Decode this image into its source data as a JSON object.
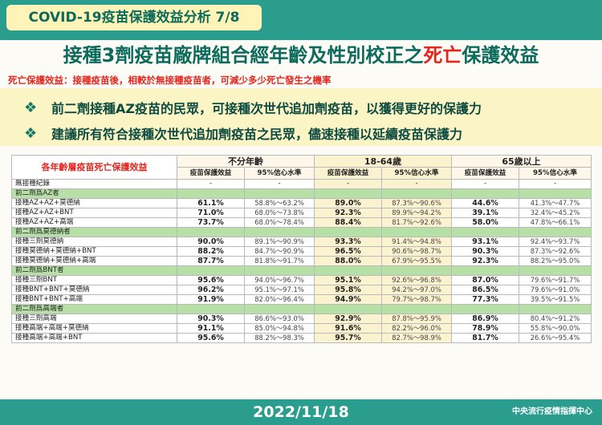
{
  "header": {
    "badge": "COVID-19疫苗保護效益分析 7/8",
    "title_pre": "接種3劑疫苗廠牌組合經年齡及性別校正之",
    "title_highlight": "死亡",
    "title_post": "保護效益",
    "subtitle": "死亡保護效益：接種疫苗後，相較於無接種疫苗者，可減少多少死亡發生之機率"
  },
  "bullets": [
    {
      "icon": "diamond-bullet-icon",
      "glyph": "❖",
      "text": "前二劑接種AZ疫苗的民眾，可接種次世代追加劑疫苗，以獲得更好的保護力"
    },
    {
      "icon": "diamond-bullet-icon",
      "glyph": "❖",
      "text": "建議所有符合接種次世代追加劑疫苗之民眾，儘速接種以延續疫苗保護力"
    }
  ],
  "table": {
    "row_label_header": "各年齡層疫苗死亡保護效益",
    "age_groups": [
      "不分年齡",
      "18-64歲",
      "65歲以上"
    ],
    "sub_headers": {
      "ve": "疫苗保護效益",
      "ci": "95%信心水準"
    },
    "no_vaccine": {
      "label": "無接種紀錄",
      "dash": "-"
    },
    "groups": [
      {
        "name": "前二劑爲AZ者",
        "rows": [
          {
            "label": "接種AZ+AZ+莫德納",
            "v": [
              "61.1%",
              "89.0%",
              "44.6%"
            ],
            "ci": [
              "58.8%～63.2%",
              "87.3%～90.6%",
              "41.3%～47.7%"
            ]
          },
          {
            "label": "接種AZ+AZ+BNT",
            "v": [
              "71.0%",
              "92.3%",
              "39.1%"
            ],
            "ci": [
              "68.0%～73.8%",
              "89.9%～94.2%",
              "32.4%～45.2%"
            ]
          },
          {
            "label": "接種AZ+AZ+高端",
            "v": [
              "73.7%",
              "88.4%",
              "58.0%"
            ],
            "ci": [
              "68.0%～78.4%",
              "81.7%～92.6%",
              "47.8%～66.1%"
            ]
          }
        ]
      },
      {
        "name": "前二劑爲莫德納者",
        "rows": [
          {
            "label": "接種三劑莫德納",
            "v": [
              "90.0%",
              "93.3%",
              "93.1%"
            ],
            "ci": [
              "89.1%～90.9%",
              "91.4%～94.8%",
              "92.4%～93.7%"
            ]
          },
          {
            "label": "接種莫德納+莫德納+BNT",
            "v": [
              "88.2%",
              "96.5%",
              "90.3%"
            ],
            "ci": [
              "84.7%～90.9%",
              "90.6%～98.7%",
              "87.3%～92.6%"
            ]
          },
          {
            "label": "接種莫德納+莫德納+高端",
            "v": [
              "87.7%",
              "88.0%",
              "92.3%"
            ],
            "ci": [
              "81.8%～91.7%",
              "67.9%～95.5%",
              "88.2%～95.0%"
            ]
          }
        ]
      },
      {
        "name": "前二劑爲BNT者",
        "rows": [
          {
            "label": "接種三劑BNT",
            "v": [
              "95.6%",
              "95.1%",
              "87.0%"
            ],
            "ci": [
              "94.0%～96.7%",
              "92.6%～96.8%",
              "79.6%～91.7%"
            ]
          },
          {
            "label": "接種BNT+BNT+莫德納",
            "v": [
              "96.2%",
              "95.8%",
              "86.5%"
            ],
            "ci": [
              "95.1%～97.1%",
              "94.2%～97.0%",
              "79.6%～91.0%"
            ]
          },
          {
            "label": "接種BNT+BNT+高端",
            "v": [
              "91.9%",
              "94.9%",
              "77.3%"
            ],
            "ci": [
              "82.0%～96.4%",
              "79.7%～98.7%",
              "39.5%～91.5%"
            ]
          }
        ]
      },
      {
        "name": "前二劑爲高端者",
        "rows": [
          {
            "label": "接種三劑高端",
            "v": [
              "90.3%",
              "92.9%",
              "86.9%"
            ],
            "ci": [
              "86.6%～93.0%",
              "87.8%～95.9%",
              "80.4%～91.2%"
            ]
          },
          {
            "label": "接種高端+高端+莫德納",
            "v": [
              "91.1%",
              "91.6%",
              "78.9%"
            ],
            "ci": [
              "85.0%～94.8%",
              "82.2%～96.0%",
              "55.8%～90.0%"
            ]
          },
          {
            "label": "接種高端+高端+BNT",
            "v": [
              "95.6%",
              "95.7%",
              "81.7%"
            ],
            "ci": [
              "88.2%～98.3%",
              "82.7%～98.9%",
              "26.6%～95.4%"
            ]
          }
        ]
      }
    ]
  },
  "footer": {
    "date": "2022/11/18",
    "org": "中央流行疫情指揮中心"
  },
  "colors": {
    "teal_band": "#2a9d8f",
    "title_green": "#0d6b5c",
    "highlight_red": "#e4261f",
    "group_row_green": "#b7e0a6",
    "mid_column_tint": "#fbf2d0"
  }
}
